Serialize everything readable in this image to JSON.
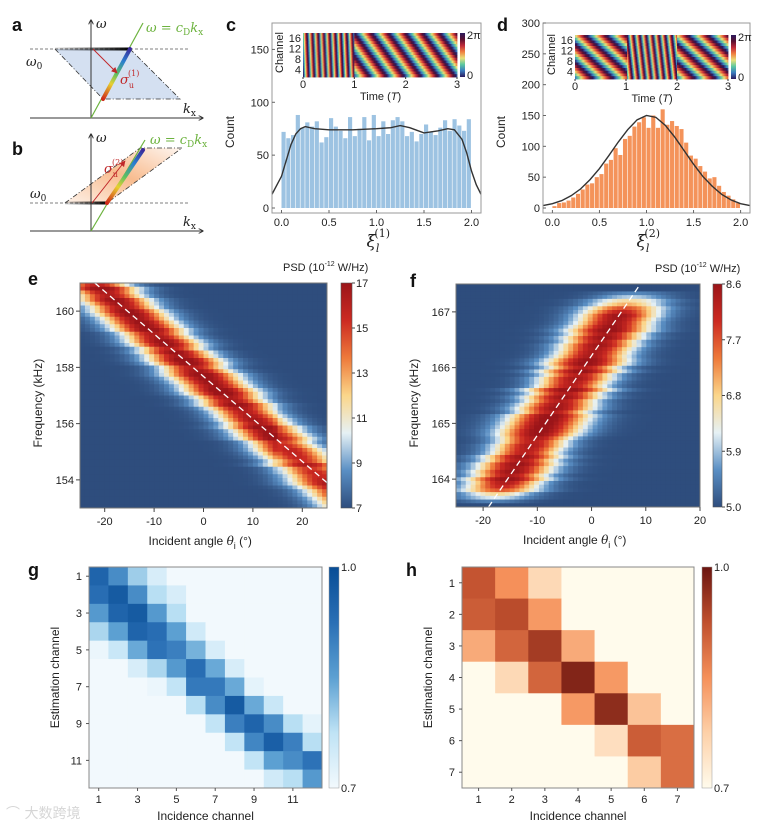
{
  "panels": [
    "a",
    "b",
    "c",
    "d",
    "e",
    "f",
    "g",
    "h"
  ],
  "watermark": "大数跨境",
  "schematic": {
    "a": {
      "omega": "ω",
      "omega0": "ω",
      "omega0_sub": "0",
      "eq": "ω = c",
      "eq_sub": "D",
      "eq_k": "k",
      "eq_k_sub": "x",
      "kx": "k",
      "kx_sub": "x",
      "sigma": "σ",
      "sigma_sub": "u",
      "sigma_sup": "(1)"
    },
    "b": {
      "omega": "ω",
      "omega0": "ω",
      "omega0_sub": "0",
      "eq": "ω = c",
      "eq_sub": "D",
      "eq_k": "k",
      "eq_k_sub": "x",
      "kx": "k",
      "kx_sub": "x",
      "sigma": "σ",
      "sigma_sub": "u",
      "sigma_sup": "(2)"
    }
  },
  "colors": {
    "hist_c": "#9dc3e2",
    "hist_d": "#f4935a",
    "fit": "#333333",
    "green_line": "#6db33f",
    "arrow": "#c0282a",
    "heat_e_f": [
      "#2e4d7d",
      "#5a8fc4",
      "#e6f1f5",
      "#fbd68a",
      "#ee7a3a",
      "#cc2a22",
      "#9b1519"
    ],
    "g_map": [
      "#f2f9fd",
      "#bfe3f5",
      "#5ca0d2",
      "#2a6fb5",
      "#084d96"
    ],
    "h_map": [
      "#fffbec",
      "#fdd0a8",
      "#f5905a",
      "#c0502e",
      "#6b1510"
    ],
    "cyclic": [
      "#2b1a5e",
      "#3a7bbf",
      "#5cc8a0",
      "#e8e07a",
      "#f08040",
      "#c02a3a",
      "#5a1030",
      "#2b1a5e"
    ]
  },
  "chart_data": [
    {
      "panel": "c",
      "type": "bar",
      "bin_start": 0,
      "bin_width": 0.05,
      "values": [
        72,
        66,
        69,
        88,
        76,
        81,
        77,
        82,
        62,
        67,
        85,
        77,
        73,
        66,
        86,
        68,
        75,
        86,
        64,
        88,
        68,
        82,
        70,
        83,
        86,
        82,
        68,
        72,
        63,
        70,
        79,
        72,
        69,
        76,
        83,
        73,
        84,
        78,
        73,
        84
      ],
      "fit_curve": {
        "x": [
          -0.1,
          0,
          0.05,
          0.1,
          0.15,
          0.2,
          0.25,
          0.35,
          0.5,
          0.75,
          1.0,
          1.15,
          1.25,
          1.35,
          1.5,
          1.65,
          1.75,
          1.82,
          1.9,
          1.95,
          2.0,
          2.05,
          2.1
        ],
        "y": [
          13,
          30,
          45,
          60,
          70,
          75,
          77,
          75,
          74,
          74,
          75,
          76,
          78,
          76,
          71,
          73,
          75,
          74,
          65,
          52,
          35,
          22,
          13
        ]
      },
      "xlim": [
        -0.1,
        2.1
      ],
      "ylim": [
        0,
        175
      ],
      "xticks": [
        0,
        0.5,
        1,
        1.5,
        2
      ],
      "xtick_labels": [
        "0.0",
        "0.5",
        "1.0",
        "1.5",
        "2.0"
      ],
      "yticks": [
        0,
        50,
        100,
        150
      ],
      "ytick_labels": [
        "0",
        "50",
        "100",
        "150"
      ],
      "ylabel": "Count",
      "xlabel": "ξ",
      "xlabel_sub": "l",
      "xlabel_sup": "(1)",
      "inset": {
        "type": "heatmap",
        "ylabel": "Channel",
        "ytick_labels": [
          "16",
          "12",
          "8",
          "4"
        ],
        "xtick_labels": [
          "0",
          "1",
          "2",
          "3"
        ],
        "xlabel_pre": "Time (",
        "xlabel_it": "T",
        "xlabel_post": ")",
        "colorbar_labels": [
          "2π",
          "0"
        ]
      }
    },
    {
      "panel": "d",
      "type": "bar",
      "bin_start": 0,
      "bin_width": 0.05,
      "values": [
        3,
        8,
        9,
        12,
        17,
        23,
        30,
        38,
        40,
        50,
        55,
        72,
        78,
        97,
        86,
        112,
        117,
        132,
        139,
        147,
        130,
        150,
        130,
        160,
        135,
        141,
        133,
        128,
        106,
        85,
        80,
        68,
        59,
        48,
        50,
        36,
        26,
        20,
        14,
        8
      ],
      "fit_curve": {
        "x": [
          -0.1,
          0,
          0.1,
          0.2,
          0.3,
          0.4,
          0.5,
          0.6,
          0.7,
          0.8,
          0.9,
          1.0,
          1.1,
          1.2,
          1.3,
          1.4,
          1.5,
          1.6,
          1.7,
          1.8,
          1.9,
          2.0,
          2.1
        ],
        "y": [
          4,
          7,
          12,
          20,
          31,
          46,
          64,
          85,
          107,
          127,
          143,
          150,
          147,
          134,
          115,
          93,
          71,
          51,
          35,
          22,
          13,
          7,
          4
        ]
      },
      "xlim": [
        -0.1,
        2.1
      ],
      "ylim": [
        0,
        300
      ],
      "xticks": [
        0,
        0.5,
        1,
        1.5,
        2
      ],
      "xtick_labels": [
        "0.0",
        "0.5",
        "1.0",
        "1.5",
        "2.0"
      ],
      "yticks": [
        0,
        50,
        100,
        150,
        200,
        250,
        300
      ],
      "ytick_labels": [
        "0",
        "50",
        "100",
        "150",
        "200",
        "250",
        "300"
      ],
      "ylabel": "Count",
      "xlabel": "ξ",
      "xlabel_sub": "l",
      "xlabel_sup": "(2)",
      "inset": {
        "type": "heatmap",
        "ylabel": "Channel",
        "ytick_labels": [
          "16",
          "12",
          "8",
          "4"
        ],
        "xtick_labels": [
          "0",
          "1",
          "2",
          "3"
        ],
        "xlabel_pre": "Time (",
        "xlabel_it": "T",
        "xlabel_post": ")",
        "colorbar_labels": [
          "2π",
          "0"
        ]
      }
    },
    {
      "panel": "e",
      "type": "heatmap",
      "xlim": [
        -25,
        25
      ],
      "ylim": [
        153,
        161
      ],
      "xticks": [
        -20,
        -10,
        0,
        10,
        20
      ],
      "xtick_labels": [
        "-20",
        "-10",
        "0",
        "10",
        "20"
      ],
      "yticks": [
        154,
        156,
        158,
        160
      ],
      "ytick_labels": [
        "154",
        "156",
        "158",
        "160"
      ],
      "xlabel_pre": "Incident angle ",
      "xlabel_theta": "θ",
      "xlabel_sub": "i",
      "xlabel_post": " (°)",
      "ylabel": "Frequency (kHz)",
      "colorbar_title_pre": "PSD (10",
      "colorbar_title_sup": "-12",
      "colorbar_title_post": " W/Hz)",
      "clim": [
        7,
        17
      ],
      "colorbar_ticks": [
        17,
        15,
        13,
        11,
        9,
        7
      ],
      "colorbar_tick_labels": [
        "17",
        "15",
        "13",
        "11",
        "9",
        "7"
      ],
      "ridge": {
        "from": [
          -22,
          161
        ],
        "to": [
          25,
          153.9
        ]
      },
      "band_halfwidth_khz": 0.95
    },
    {
      "panel": "f",
      "type": "heatmap",
      "xlim": [
        -25,
        20
      ],
      "ylim": [
        163.5,
        167.5
      ],
      "xticks": [
        -20,
        -10,
        0,
        10,
        20
      ],
      "xtick_labels": [
        "-20",
        "-10",
        "0",
        "10",
        "20"
      ],
      "yticks": [
        164,
        165,
        166,
        167
      ],
      "ytick_labels": [
        "164",
        "165",
        "166",
        "167"
      ],
      "xlabel_pre": "Incident angle ",
      "xlabel_theta": "θ",
      "xlabel_sub": "i",
      "xlabel_post": " (°)",
      "ylabel": "Frequency (kHz)",
      "colorbar_title_pre": "PSD (10",
      "colorbar_title_sup": "-12",
      "colorbar_title_post": " W/Hz)",
      "clim": [
        5.0,
        8.6
      ],
      "colorbar_ticks": [
        8.6,
        7.7,
        6.8,
        5.9,
        5.0
      ],
      "colorbar_tick_labels": [
        "8.6",
        "7.7",
        "6.8",
        "5.9",
        "5.0"
      ],
      "ridge": {
        "from": [
          -19,
          163.5
        ],
        "to": [
          9,
          167.5
        ]
      },
      "band_halfwidth_deg": 7
    },
    {
      "panel": "g",
      "type": "heatmap",
      "xlabel": "Incidence channel",
      "ylabel": "Estimation channel",
      "tick_labels": [
        "1",
        "3",
        "5",
        "7",
        "9",
        "11"
      ],
      "tick_values": [
        1,
        3,
        5,
        7,
        9,
        11
      ],
      "clim": [
        0.7,
        1.0
      ],
      "colorbar_labels": [
        "1.0",
        "0.7"
      ],
      "matrix": [
        [
          0.95,
          0.88,
          0.8,
          0.74,
          0.7,
          0.7,
          0.7,
          0.7,
          0.7,
          0.7,
          0.7,
          0.7
        ],
        [
          0.93,
          0.97,
          0.88,
          0.78,
          0.74,
          0.7,
          0.7,
          0.7,
          0.7,
          0.7,
          0.7,
          0.7
        ],
        [
          0.86,
          0.95,
          0.97,
          0.86,
          0.78,
          0.7,
          0.7,
          0.7,
          0.7,
          0.7,
          0.7,
          0.7
        ],
        [
          0.79,
          0.85,
          0.95,
          0.93,
          0.85,
          0.75,
          0.7,
          0.7,
          0.7,
          0.7,
          0.7,
          0.7
        ],
        [
          0.71,
          0.76,
          0.84,
          0.92,
          0.9,
          0.83,
          0.74,
          0.7,
          0.7,
          0.7,
          0.7,
          0.7
        ],
        [
          0.7,
          0.7,
          0.74,
          0.79,
          0.86,
          0.93,
          0.84,
          0.74,
          0.7,
          0.7,
          0.7,
          0.7
        ],
        [
          0.7,
          0.7,
          0.7,
          0.71,
          0.77,
          0.91,
          0.91,
          0.84,
          0.72,
          0.7,
          0.7,
          0.7
        ],
        [
          0.7,
          0.7,
          0.7,
          0.7,
          0.7,
          0.78,
          0.88,
          0.97,
          0.84,
          0.76,
          0.7,
          0.7
        ],
        [
          0.7,
          0.7,
          0.7,
          0.7,
          0.7,
          0.7,
          0.77,
          0.9,
          0.95,
          0.88,
          0.78,
          0.72
        ],
        [
          0.7,
          0.7,
          0.7,
          0.7,
          0.7,
          0.7,
          0.7,
          0.77,
          0.89,
          0.96,
          0.9,
          0.78
        ],
        [
          0.7,
          0.7,
          0.7,
          0.7,
          0.7,
          0.7,
          0.7,
          0.7,
          0.77,
          0.85,
          0.88,
          0.92
        ],
        [
          0.7,
          0.7,
          0.7,
          0.7,
          0.7,
          0.7,
          0.7,
          0.7,
          0.7,
          0.75,
          0.78,
          0.86
        ]
      ]
    },
    {
      "panel": "h",
      "type": "heatmap",
      "xlabel": "Incidence channel",
      "ylabel": "Estimation channel",
      "tick_labels": [
        "1",
        "2",
        "3",
        "4",
        "5",
        "6",
        "7"
      ],
      "tick_values": [
        1,
        2,
        3,
        4,
        5,
        6,
        7
      ],
      "clim": [
        0.7,
        1.0
      ],
      "colorbar_labels": [
        "1.0",
        "0.7"
      ],
      "matrix": [
        [
          0.92,
          0.85,
          0.76,
          0.7,
          0.7,
          0.7,
          0.7
        ],
        [
          0.91,
          0.93,
          0.84,
          0.7,
          0.7,
          0.7,
          0.7
        ],
        [
          0.82,
          0.9,
          0.95,
          0.82,
          0.7,
          0.7,
          0.7
        ],
        [
          0.7,
          0.76,
          0.9,
          0.98,
          0.84,
          0.7,
          0.7
        ],
        [
          0.7,
          0.7,
          0.7,
          0.84,
          0.97,
          0.79,
          0.7
        ],
        [
          0.7,
          0.7,
          0.7,
          0.7,
          0.75,
          0.91,
          0.89
        ],
        [
          0.7,
          0.7,
          0.7,
          0.7,
          0.7,
          0.78,
          0.89
        ]
      ]
    }
  ]
}
